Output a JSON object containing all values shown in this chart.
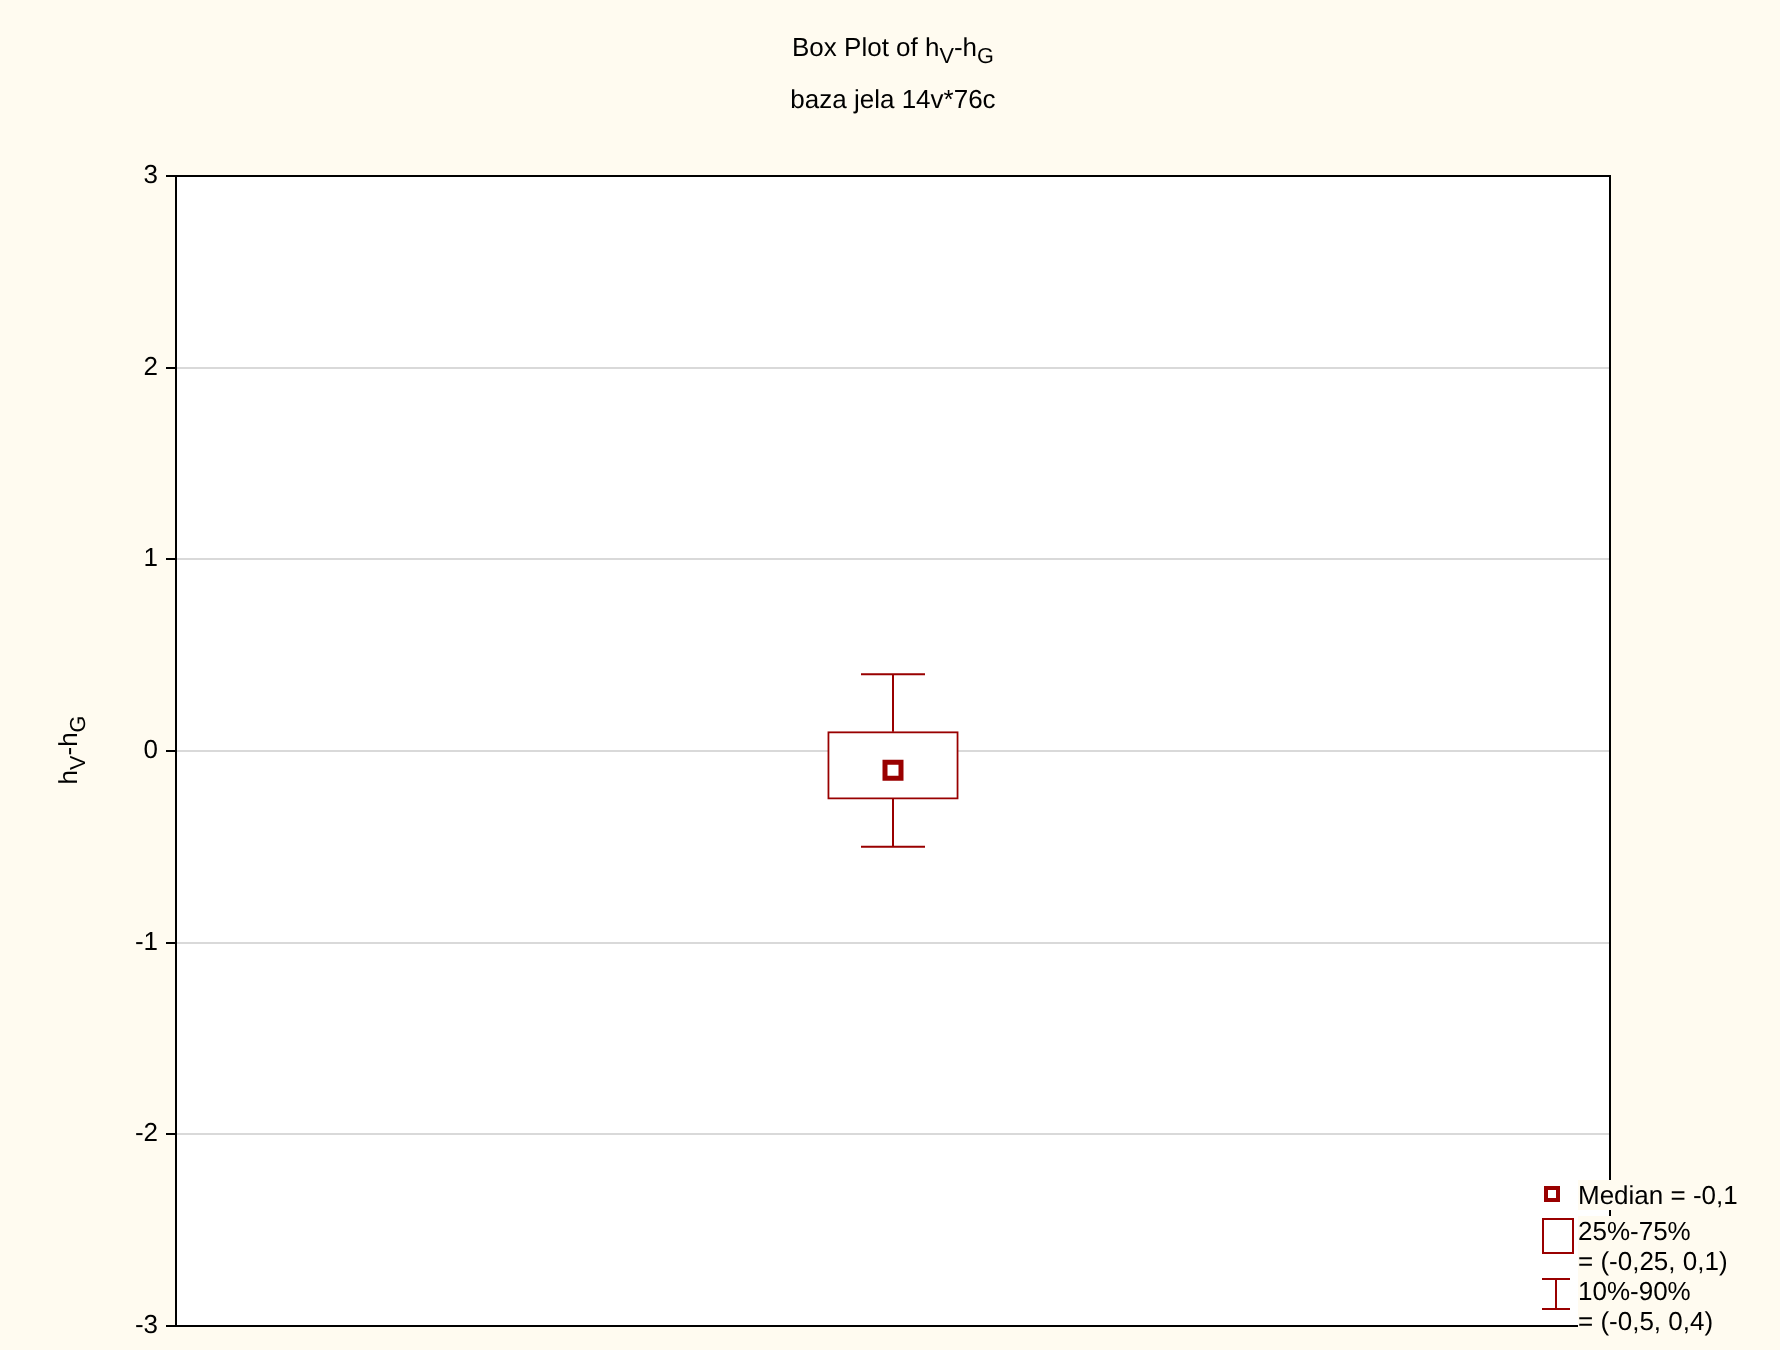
{
  "chart_data": {
    "type": "box",
    "title": "Box Plot of h$_{V}$-h$_{G}$",
    "subtitle": "baza jela 14v*76c",
    "ylabel": "h$_{V}$-h$_{G}$",
    "categories": [
      null
    ],
    "series": [
      {
        "color": "#990000",
        "boxes": [
          {
            "low": -0.5,
            "q1": -0.25,
            "median": -0.1,
            "q3": 0.1,
            "high": 0.4
          }
        ]
      }
    ],
    "ylim": [
      -3,
      3
    ],
    "yticks": [
      -3,
      -2,
      -1,
      0,
      1,
      2,
      3
    ],
    "grid": "y",
    "annotations": [
      "Median = -0,1",
      "25%-75%\n= (-0,25, 0,1)",
      "10%-90%\n= (-0,5, 0,4)"
    ]
  }
}
